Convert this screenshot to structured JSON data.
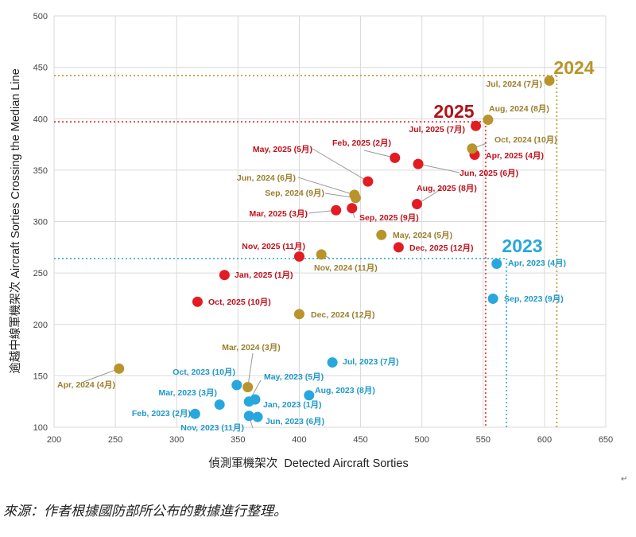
{
  "chart_data": {
    "type": "scatter",
    "xlabel": "偵測軍機架次  Detected Aircraft Sorties",
    "ylabel": "逾越中線軍機架次 Aircraft Sorties Crossing the Median Line",
    "xlim": [
      200,
      650
    ],
    "ylim": [
      100,
      500
    ],
    "xticks": [
      200,
      250,
      300,
      350,
      400,
      450,
      500,
      550,
      600,
      650
    ],
    "yticks": [
      100,
      150,
      200,
      250,
      300,
      350,
      400,
      450,
      500
    ],
    "grid": true,
    "series": [
      {
        "name": "2025",
        "color": "#e31b23",
        "label_color": "#c0121c",
        "median_x": 552,
        "median_y": 397,
        "points": [
          {
            "label": "Jan, 2025 (1月)",
            "x": 339,
            "y": 248
          },
          {
            "label": "Feb, 2025 (2月)",
            "x": 478,
            "y": 362
          },
          {
            "label": "Mar, 2025 (3月)",
            "x": 430,
            "y": 311
          },
          {
            "label": "Apr, 2025 (4月)",
            "x": 543,
            "y": 365
          },
          {
            "label": "May, 2025 (5月)",
            "x": 456,
            "y": 339
          },
          {
            "label": "Jun, 2025 (6月)",
            "x": 497,
            "y": 356
          },
          {
            "label": "Jul, 2025 (7月)",
            "x": 544,
            "y": 393
          },
          {
            "label": "Aug, 2025 (8月)",
            "x": 496,
            "y": 317
          },
          {
            "label": "Sep, 2025 (9月)",
            "x": 443,
            "y": 313
          },
          {
            "label": "Oct, 2025 (10月)",
            "x": 317,
            "y": 222
          },
          {
            "label": "Nov, 2025 (11月)",
            "x": 400,
            "y": 266
          },
          {
            "label": "Dec, 2025 (12月)",
            "x": 481,
            "y": 275
          }
        ]
      },
      {
        "name": "2024",
        "color": "#b8942a",
        "label_color": "#9a7f2c",
        "median_x": 610,
        "median_y": 442,
        "points": [
          {
            "label": "Mar, 2024 (3月)",
            "x": 358,
            "y": 139
          },
          {
            "label": "Apr, 2024 (4月)",
            "x": 253,
            "y": 157
          },
          {
            "label": "May, 2024 (5月)",
            "x": 467,
            "y": 287
          },
          {
            "label": "Jun, 2024 (6月)",
            "x": 445,
            "y": 326
          },
          {
            "label": "Jul, 2024 (7月)",
            "x": 604,
            "y": 437
          },
          {
            "label": "Aug, 2024 (8月)",
            "x": 554,
            "y": 399
          },
          {
            "label": "Sep, 2024 (9月)",
            "x": 446,
            "y": 323
          },
          {
            "label": "Oct, 2024 (10月)",
            "x": 541,
            "y": 371
          },
          {
            "label": "Nov, 2024 (11月)",
            "x": 418,
            "y": 268
          },
          {
            "label": "Dec, 2024 (12月)",
            "x": 400,
            "y": 210
          }
        ]
      },
      {
        "name": "2023",
        "color": "#28a7de",
        "label_color": "#1e98c8",
        "median_x": 569,
        "median_y": 264,
        "points": [
          {
            "label": "Jan, 2023 (1月)",
            "x": 364,
            "y": 127
          },
          {
            "label": "Feb, 2023 (2月)",
            "x": 315,
            "y": 113
          },
          {
            "label": "Mar, 2023 (3月)",
            "x": 335,
            "y": 122
          },
          {
            "label": "Apr, 2023 (4月)",
            "x": 561,
            "y": 259
          },
          {
            "label": "May, 2023 (5月)",
            "x": 359,
            "y": 125
          },
          {
            "label": "Jun, 2023 (6月)",
            "x": 366,
            "y": 110
          },
          {
            "label": "Jul, 2023 (7月)",
            "x": 427,
            "y": 163
          },
          {
            "label": "Aug, 2023 (8月)",
            "x": 408,
            "y": 131
          },
          {
            "label": "Sep, 2023 (9月)",
            "x": 558,
            "y": 225
          },
          {
            "label": "Oct, 2023 (10月)",
            "x": 349,
            "y": 141
          },
          {
            "label": "Nov, 2023 (11月)",
            "x": 359,
            "y": 111
          }
        ]
      }
    ]
  },
  "source_text": "來源：作者根據國防部所公布的數據進行整理。",
  "return_mark": "↵"
}
